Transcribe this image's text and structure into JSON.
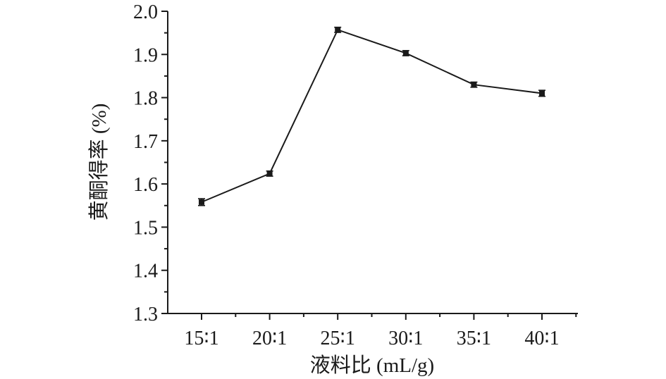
{
  "chart_data": {
    "type": "line",
    "title": "",
    "xlabel": "液料比 (mL/g)",
    "ylabel": "黄酮得率 (%)",
    "categories": [
      "15∶1",
      "20∶1",
      "25∶1",
      "30∶1",
      "35∶1",
      "40∶1"
    ],
    "series": [
      {
        "values": [
          1.558,
          1.624,
          1.957,
          1.903,
          1.83,
          1.81
        ],
        "errors": [
          0.008,
          0.006,
          0.006,
          0.006,
          0.006,
          0.007
        ]
      }
    ],
    "ylim": [
      1.3,
      2.0
    ],
    "yticks": [
      "1.3",
      "1.4",
      "1.5",
      "1.6",
      "1.7",
      "1.8",
      "1.9",
      "2.0"
    ],
    "grid": false,
    "legend": "none",
    "colors": {
      "line": "#1a1a1a",
      "axis": "#1a1a1a"
    }
  }
}
